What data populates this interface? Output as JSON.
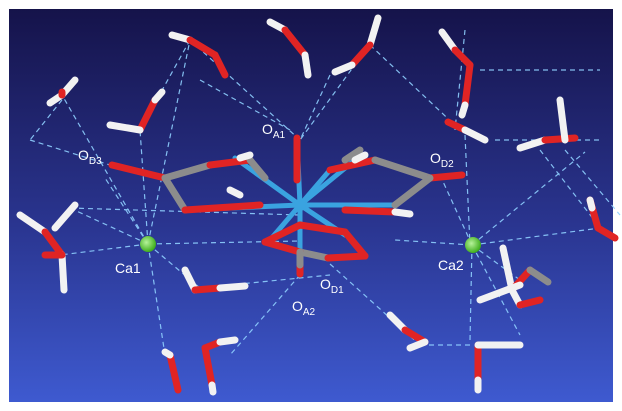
{
  "labels": {
    "oa1": {
      "main": "O",
      "sub": "A1"
    },
    "od2": {
      "main": "O",
      "sub": "D2"
    },
    "od3": {
      "main": "O",
      "sub": "D3"
    },
    "ca1": {
      "main": "Ca1"
    },
    "ca2": {
      "main": "Ca2"
    },
    "od1": {
      "main": "O",
      "sub": "D1"
    },
    "oa2": {
      "main": "O",
      "sub": "A2"
    }
  },
  "colors": {
    "background_top": "#17144a",
    "background_bottom": "#3b55c9",
    "oxygen": "#e02424",
    "hydrogen": "#f2f2f2",
    "carbon": "#8c8c8c",
    "metal_center": "#3aa3e0",
    "calcium": "#55d12c",
    "hbond": "#8fd0ff"
  }
}
